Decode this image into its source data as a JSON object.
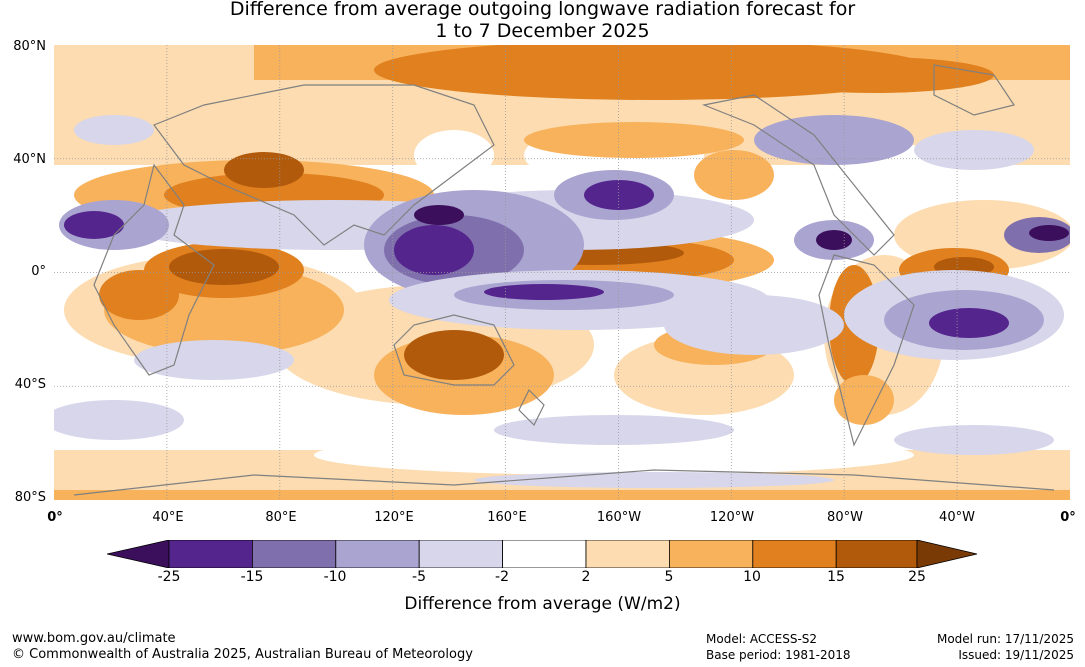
{
  "title": {
    "line1": "Difference from average outgoing longwave radiation forecast for",
    "line2": "1 to 7 December 2025"
  },
  "map": {
    "lat_labels": [
      "80°N",
      "40°N",
      "0°",
      "40°S",
      "80°S"
    ],
    "lon_labels": [
      "0°",
      "40°E",
      "80°E",
      "120°E",
      "160°E",
      "160°W",
      "120°W",
      "80°W",
      "40°W",
      "0°"
    ]
  },
  "colorbar": {
    "ticks": [
      "-25",
      "-15",
      "-10",
      "-5",
      "-2",
      "2",
      "5",
      "10",
      "15",
      "25"
    ],
    "colors": [
      "#3b0f5c",
      "#55258e",
      "#7f70ad",
      "#aaa4d0",
      "#d7d6ea",
      "#ffffff",
      "#fcdcb0",
      "#f8b25c",
      "#e0801e",
      "#b25a0c",
      "#7a3a06"
    ],
    "label": "Difference from average (W/m2)"
  },
  "footer": {
    "website": "www.bom.gov.au/climate",
    "copyright": "© Commonwealth of Australia 2025, Australian Bureau of Meteorology",
    "model": "Model: ACCESS-S2",
    "base_period": "Base period: 1981-2018",
    "model_run": "Model run: 17/11/2025",
    "issued": "Issued: 19/11/2025"
  }
}
